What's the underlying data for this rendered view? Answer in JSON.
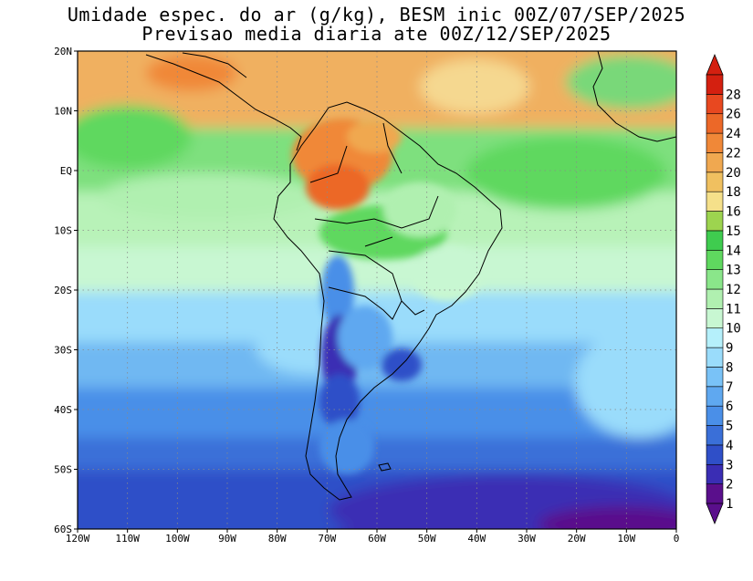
{
  "title": {
    "line1": "Umidade espec. do ar (g/kg), BESM inic 00Z/07/SEP/2025",
    "line2": "Previsao media diaria ate 00Z/12/SEP/2025"
  },
  "map": {
    "lon_range": [
      -120,
      0
    ],
    "lat_range": [
      -60,
      20
    ],
    "x_ticks": [
      "120W",
      "110W",
      "100W",
      "90W",
      "80W",
      "70W",
      "60W",
      "50W",
      "40W",
      "30W",
      "20W",
      "10W",
      "0"
    ],
    "y_ticks": [
      "20N",
      "10N",
      "EQ",
      "10S",
      "20S",
      "30S",
      "40S",
      "50S",
      "60S"
    ],
    "grid": "dotted"
  },
  "colorbar": {
    "levels": [
      "1",
      "2",
      "3",
      "4",
      "5",
      "6",
      "7",
      "8",
      "9",
      "10",
      "11",
      "12",
      "13",
      "14",
      "15",
      "16",
      "18",
      "20",
      "22",
      "24",
      "26",
      "28"
    ],
    "colors": [
      "#5a0f8c",
      "#3a2db4",
      "#2f4fc8",
      "#3a6fd8",
      "#4a8fe8",
      "#5fa8f0",
      "#79c2f7",
      "#9adcfb",
      "#b5f0fb",
      "#c8f7d2",
      "#b0f0b0",
      "#8ae68a",
      "#5fd85f",
      "#3fcc4f",
      "#9dd44f",
      "#f5e08a",
      "#f0c060",
      "#f0a850",
      "#f08838",
      "#ec6828",
      "#e84820",
      "#d42010"
    ]
  }
}
